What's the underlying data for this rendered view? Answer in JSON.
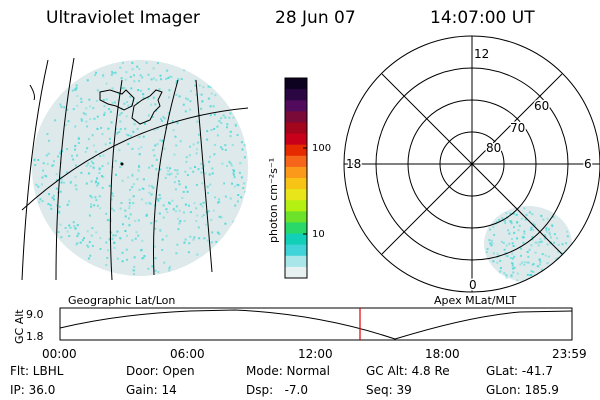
{
  "header": {
    "instrument": "Ultraviolet Imager",
    "date": "28 Jun 07",
    "time": "14:07:00 UT"
  },
  "colorbar": {
    "unit_label": "photon cm⁻²s⁻¹",
    "ticks": [
      "100",
      "10"
    ],
    "colors": [
      "#0d0321",
      "#2a0642",
      "#520a5c",
      "#7a0a38",
      "#a3051c",
      "#c8001a",
      "#e62a00",
      "#f5661a",
      "#fb9a1a",
      "#f7c314",
      "#e8e61a",
      "#b4f012",
      "#6ce32a",
      "#2ad86a",
      "#12d0b8",
      "#40d4d8",
      "#a8e6ea",
      "#e8f1f2"
    ]
  },
  "left_panel": {
    "caption": "Geographic Lat/Lon",
    "fill_color": "#dde9ea",
    "speckle_color": "#3fd8d6"
  },
  "right_panel": {
    "caption": "Apex MLat/MLT",
    "mlt_labels": [
      "12",
      "18",
      "6",
      "0"
    ],
    "mlat_labels": [
      "60",
      "70",
      "80"
    ]
  },
  "timeline": {
    "ylabel": "GC Alt",
    "y_ticks": [
      "9.0",
      "1.8"
    ],
    "x_ticks": [
      "00:00",
      "06:00",
      "12:00",
      "18:00",
      "23:59"
    ],
    "marker_color": "#e00000"
  },
  "footer": {
    "filter": "Flt: LBHL",
    "ip": "IP: 36.0",
    "door": "Door: Open",
    "gain": "Gain: 14",
    "mode": "Mode: Normal",
    "dsp": "Dsp:   -7.0",
    "gc_alt": "GC Alt: 4.8 Re",
    "seq": "Seq: 39",
    "glat": "GLat: -41.7",
    "glon": "GLon: 185.9"
  }
}
